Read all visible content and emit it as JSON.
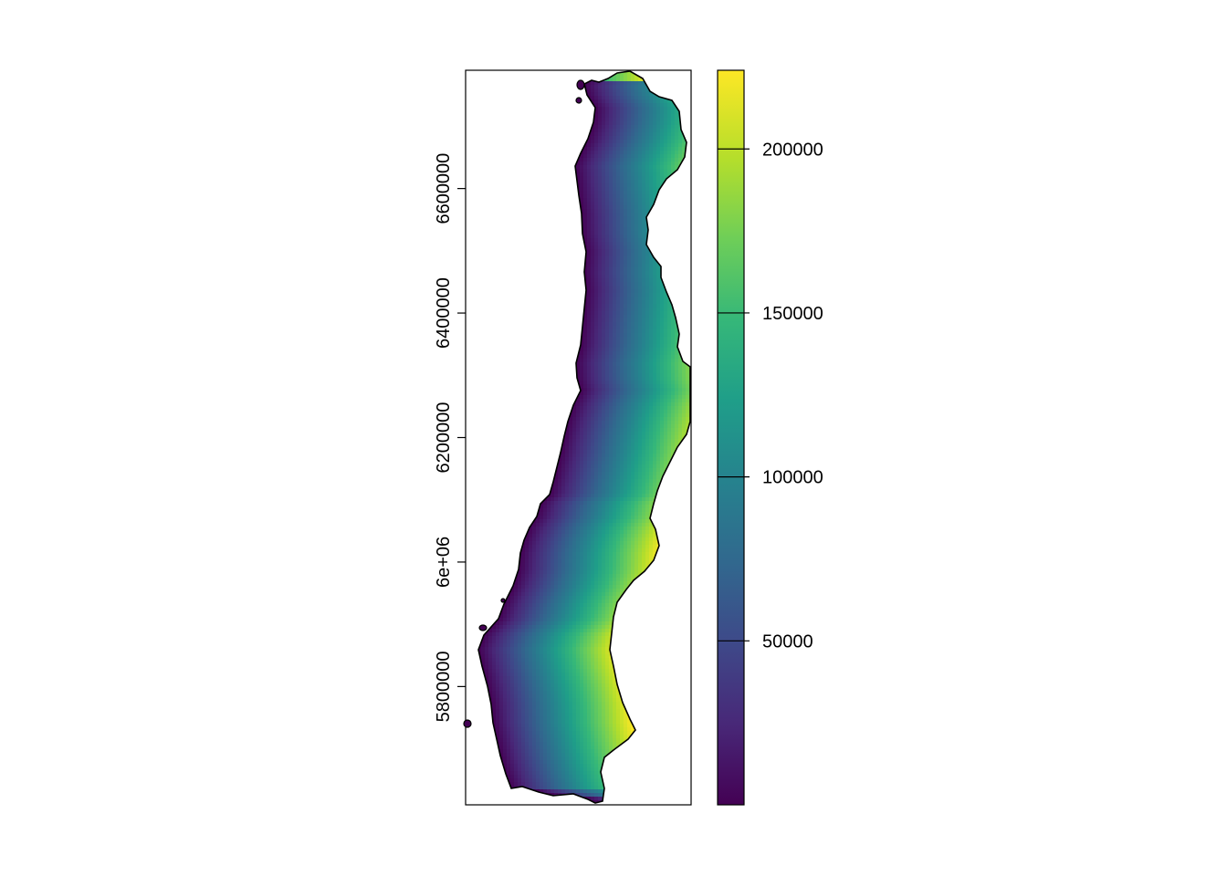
{
  "chart_data": {
    "type": "heatmap",
    "title": "",
    "xlabel": "",
    "ylabel": "",
    "description_note": "",
    "y_axis": {
      "ticks": [
        5800000,
        6000000,
        6200000,
        6400000,
        6600000
      ],
      "tick_labels": [
        "5800000",
        "6e+06",
        "6200000",
        "6400000",
        "6600000"
      ],
      "range": [
        5610000,
        6790000
      ]
    },
    "legend": {
      "type": "colorbar",
      "placement": "right",
      "range": [
        0,
        224000
      ],
      "ticks": [
        50000,
        100000,
        150000,
        200000
      ],
      "tick_labels": [
        "50000",
        "100000",
        "150000",
        "200000"
      ],
      "colormap": [
        "#440154",
        "#482878",
        "#3e4989",
        "#31688e",
        "#26828e",
        "#1f9e89",
        "#35b779",
        "#6ece58",
        "#b5de2b",
        "#fde725"
      ]
    },
    "grid": false,
    "value_pattern": "values increase from western coast (near 0) eastward; maximum ~224000 in the southeast"
  }
}
